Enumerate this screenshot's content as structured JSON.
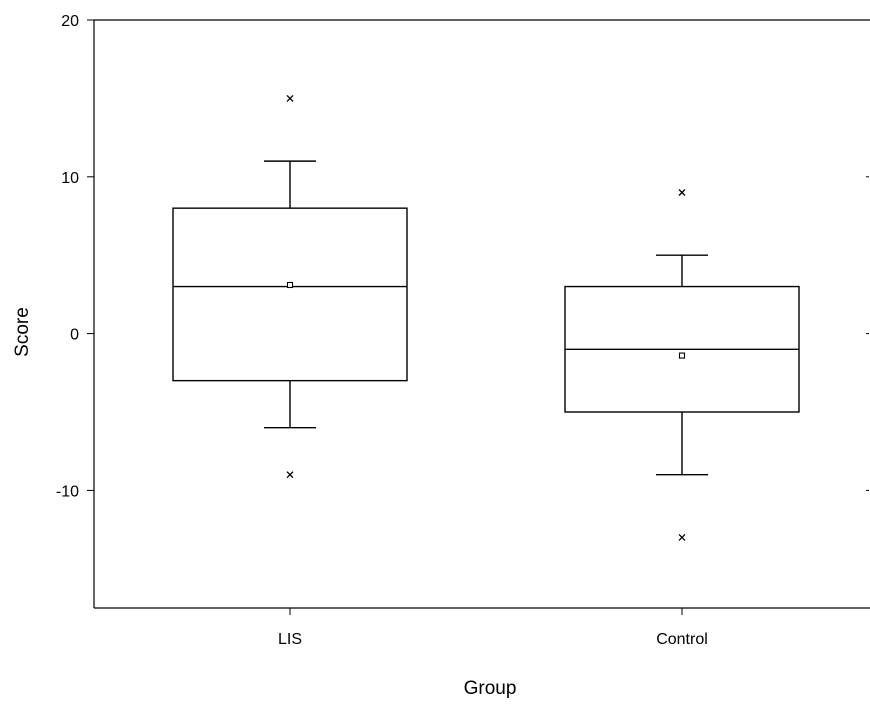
{
  "chart_data": {
    "type": "box",
    "title": "",
    "xlabel": "Group",
    "ylabel": "Score",
    "ylim": [
      -17.5,
      20
    ],
    "yticks": [
      -10,
      0,
      10,
      20
    ],
    "ytick_labels": [
      "-10",
      "0",
      "10",
      "20"
    ],
    "grid": false,
    "legend": "none",
    "categories": [
      "LIS",
      "Control"
    ],
    "boxes": [
      {
        "category": "LIS",
        "q1": -3,
        "median": 3,
        "q3": 8,
        "whisker_low": -6,
        "whisker_high": 11,
        "mean": 3.1,
        "outliers": [
          15,
          -9
        ]
      },
      {
        "category": "Control",
        "q1": -5,
        "median": -1,
        "q3": 3,
        "whisker_low": -9,
        "whisker_high": 5,
        "mean": -1.4,
        "outliers": [
          9,
          -13
        ]
      }
    ]
  }
}
